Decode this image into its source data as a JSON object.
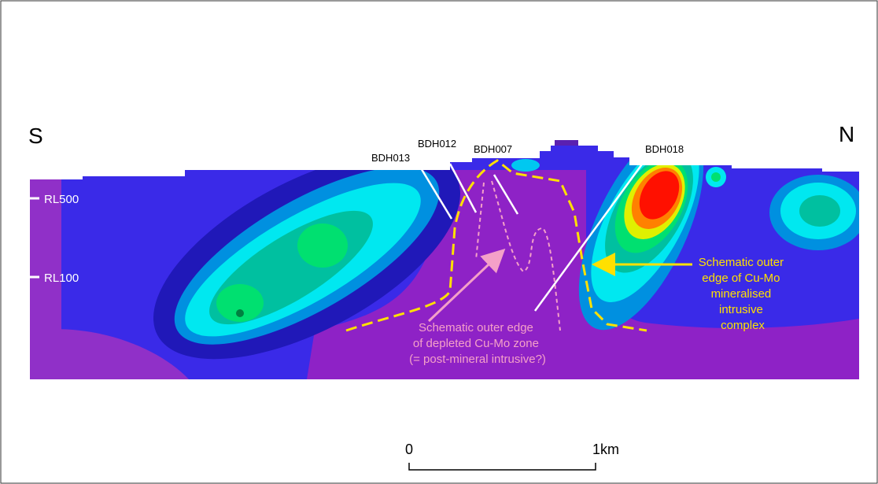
{
  "compass": {
    "south": "S",
    "north": "N"
  },
  "drillholes": [
    "BDH013",
    "BDH012",
    "BDH007",
    "BDH018"
  ],
  "levels": [
    "RL500",
    "RL100"
  ],
  "annotations": {
    "depleted": [
      "Schematic outer edge",
      "of depleted Cu-Mo zone",
      "(= post-mineral intrusive?)"
    ],
    "mineralised": [
      "Schematic outer",
      "edge of Cu-Mo",
      "mineralised",
      "intrusive",
      "complex"
    ]
  },
  "scale_bar": {
    "start": "0",
    "end": "1km"
  }
}
